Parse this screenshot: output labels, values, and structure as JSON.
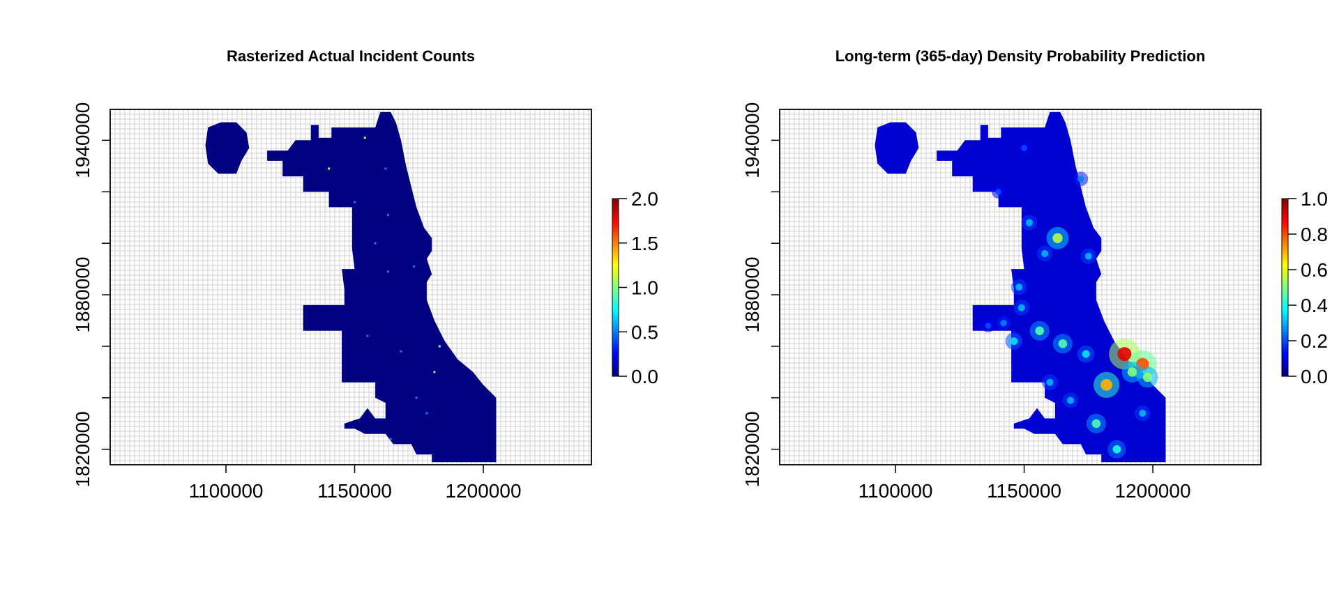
{
  "chart_data": [
    {
      "type": "heatmap",
      "title": "Rasterized Actual Incident Counts",
      "xlabel": "",
      "ylabel": "",
      "xlim": [
        1055000,
        1242000
      ],
      "ylim": [
        1814000,
        1952000
      ],
      "x_ticks": [
        1100000,
        1150000,
        1200000
      ],
      "x_tick_labels": [
        "1100000",
        "1150000",
        "1200000"
      ],
      "y_ticks": [
        1820000,
        1880000,
        1940000
      ],
      "y_tick_labels": [
        "1820000",
        "1880000",
        "1940000"
      ],
      "grid": true,
      "colorbar": {
        "range": [
          0.0,
          2.0
        ],
        "ticks": [
          0.0,
          0.5,
          1.0,
          1.5,
          2.0
        ],
        "tick_labels": [
          "0.0",
          "0.5",
          "1.0",
          "1.5",
          "2.0"
        ],
        "colormap": "jet",
        "placement": "right"
      },
      "background_value": 0.0,
      "values": [
        [
          1154000,
          1941000,
          1.0
        ],
        [
          1140000,
          1929000,
          1.0
        ],
        [
          1162000,
          1929000,
          0.5
        ],
        [
          1150000,
          1916000,
          0.5
        ],
        [
          1163000,
          1911000,
          0.5
        ],
        [
          1158000,
          1900000,
          0.5
        ],
        [
          1173000,
          1891000,
          0.5
        ],
        [
          1163000,
          1889000,
          0.5
        ],
        [
          1168000,
          1858000,
          0.5
        ],
        [
          1183000,
          1860000,
          1.0
        ],
        [
          1181000,
          1850000,
          1.0
        ],
        [
          1174000,
          1840000,
          0.5
        ],
        [
          1178000,
          1834000,
          0.5
        ],
        [
          1164000,
          1824000,
          0.5
        ],
        [
          1155000,
          1864000,
          0.5
        ]
      ]
    },
    {
      "type": "heatmap",
      "title": "Long-term (365-day) Density Probability Prediction",
      "xlabel": "",
      "ylabel": "",
      "xlim": [
        1055000,
        1242000
      ],
      "ylim": [
        1814000,
        1952000
      ],
      "x_ticks": [
        1100000,
        1150000,
        1200000
      ],
      "x_tick_labels": [
        "1100000",
        "1150000",
        "1200000"
      ],
      "y_ticks": [
        1820000,
        1880000,
        1940000
      ],
      "y_tick_labels": [
        "1820000",
        "1880000",
        "1940000"
      ],
      "grid": true,
      "colorbar": {
        "range": [
          0.0,
          1.0
        ],
        "ticks": [
          0.0,
          0.2,
          0.4,
          0.6,
          0.8,
          1.0
        ],
        "tick_labels": [
          "0.0",
          "0.2",
          "0.4",
          "0.6",
          "0.8",
          "1.0"
        ],
        "colormap": "jet",
        "placement": "right"
      },
      "background_value": 0.08,
      "values": [
        [
          1163000,
          1902000,
          0.55
        ],
        [
          1152000,
          1908000,
          0.3
        ],
        [
          1158000,
          1896000,
          0.3
        ],
        [
          1148000,
          1883000,
          0.3
        ],
        [
          1149000,
          1875000,
          0.3
        ],
        [
          1156000,
          1866000,
          0.45
        ],
        [
          1165000,
          1861000,
          0.45
        ],
        [
          1146000,
          1862000,
          0.35
        ],
        [
          1174000,
          1857000,
          0.35
        ],
        [
          1189000,
          1857000,
          0.9
        ],
        [
          1196000,
          1853000,
          0.8
        ],
        [
          1192000,
          1850000,
          0.5
        ],
        [
          1182000,
          1845000,
          0.7
        ],
        [
          1198000,
          1848000,
          0.5
        ],
        [
          1178000,
          1830000,
          0.45
        ],
        [
          1186000,
          1820000,
          0.4
        ],
        [
          1196000,
          1834000,
          0.3
        ],
        [
          1160000,
          1846000,
          0.3
        ],
        [
          1142000,
          1869000,
          0.25
        ],
        [
          1136000,
          1868000,
          0.2
        ],
        [
          1150000,
          1937000,
          0.2
        ],
        [
          1172000,
          1925000,
          0.25
        ],
        [
          1140000,
          1920000,
          0.2
        ],
        [
          1175000,
          1895000,
          0.3
        ],
        [
          1168000,
          1839000,
          0.3
        ]
      ]
    }
  ]
}
